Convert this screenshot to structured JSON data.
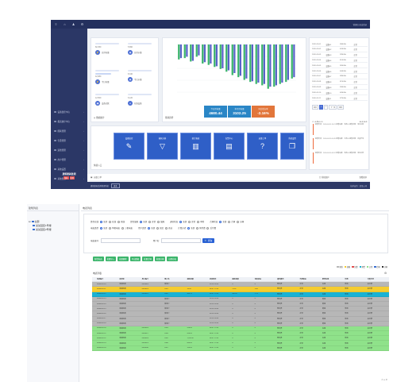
{
  "top": {
    "icons": [
      "menu-icon",
      "home-icon",
      "user-icon",
      "gear-icon"
    ],
    "header_right": "管理员  退出登录",
    "sidebar": {
      "items": [
        {
          "label": "设备监控中心",
          "icon": "monitor-icon"
        },
        {
          "label": "报表统计中心",
          "icon": "chart-icon"
        },
        {
          "label": "能耗管理",
          "icon": "bolt-icon"
        },
        {
          "label": "告警管理",
          "icon": "bell-icon"
        },
        {
          "label": "运维管理",
          "icon": "wrench-icon"
        },
        {
          "label": "用户管理",
          "icon": "user-icon"
        },
        {
          "label": "系统设置",
          "icon": "gear-icon"
        },
        {
          "label": "系统管理",
          "icon": "cog-icon"
        }
      ],
      "logo_line1": "建筑能耗监测",
      "logo_tags": [
        "能耗",
        "监测"
      ]
    },
    "stats": {
      "items": [
        {
          "value": "82,450",
          "label": "总用电量"
        },
        {
          "value": "5,890",
          "label": "总用水量"
        },
        {
          "value": "42,980",
          "label": "今日电量"
        },
        {
          "value": "8,340",
          "label": "今日水量"
        },
        {
          "value": "12,500",
          "label": "设备总数"
        },
        {
          "value": "6,120",
          "label": "在线设备"
        }
      ],
      "title": "数据统计"
    },
    "chart": {
      "title": "能耗趋势",
      "kpis": [
        {
          "title": "今日用电量",
          "value": "4680.44"
        },
        {
          "title": "本月用电量",
          "value": "3102.25"
        },
        {
          "title": "同比增长率",
          "value": "-2.16%"
        }
      ]
    },
    "table": {
      "rows": [
        [
          "2020-03-01",
          "设备01",
          "380kWh",
          "正常"
        ],
        [
          "2020-03-02",
          "设备02",
          "420kWh",
          "正常"
        ],
        [
          "2020-03-03",
          "设备03",
          "395kWh",
          "正常"
        ],
        [
          "2020-03-04",
          "设备04",
          "410kWh",
          "正常"
        ],
        [
          "2020-03-05",
          "设备05",
          "365kWh",
          "正常"
        ],
        [
          "2020-03-06",
          "设备06",
          "400kWh",
          "正常"
        ],
        [
          "2020-03-07",
          "设备07",
          "385kWh",
          "正常"
        ],
        [
          "2020-03-08",
          "设备08",
          "415kWh",
          "正常"
        ],
        [
          "2020-03-09",
          "设备09",
          "390kWh",
          "正常"
        ],
        [
          "2020-03-10",
          "设备10",
          "405kWh",
          "正常"
        ],
        [
          "2020-03-11",
          "设备11",
          "375kWh",
          "正常"
        ]
      ],
      "buttons": [
        "首页",
        "1",
        "2",
        "下一页",
        "尾页"
      ]
    },
    "alerts": {
      "title": "告警信息",
      "more": "查看更多",
      "items": [
        "报警时间：2020-03-20 10:21  报警设备：电表01  报警内容：电流过载",
        "报警时间：2020-03-20 09:45  报警设备：水表03  报警内容：流量异常",
        "报警时间：2020-03-20 08:12  报警设备：电表05  报警内容：电压过低"
      ]
    },
    "quick": {
      "title": "快捷入口",
      "items": [
        {
          "label": "设备监控",
          "icon": "edit-icon"
        },
        {
          "label": "能耗分析",
          "icon": "filter-icon"
        },
        {
          "label": "统计报表",
          "icon": "bar-chart-icon"
        },
        {
          "label": "告警中心",
          "icon": "document-icon"
        },
        {
          "label": "运维工单",
          "icon": "help-icon"
        },
        {
          "label": "系统设置",
          "icon": "copy-icon"
        }
      ]
    },
    "foot": "运维工单",
    "foot2": "系统维护",
    "foot2_more": "查看更多",
    "status": "建筑能耗监测管理系统",
    "status_btn": "更多",
    "status_right": "技术支持：某某公司"
  },
  "bottom": {
    "tree": {
      "title": "建筑列表",
      "nodes": [
        "全部",
        "某某园区1号楼",
        "某某园区2号楼"
      ]
    },
    "title": "电表列表",
    "filters": {
      "row1": [
        {
          "label": "是否在线",
          "options": [
            "全部",
            "在线",
            "离线"
          ]
        },
        {
          "label": "是否故障",
          "options": [
            "全部",
            "正常",
            "故障"
          ]
        },
        {
          "label": "通讯状态",
          "options": [
            "全部",
            "正常",
            "中断"
          ]
        },
        {
          "label": "合闸状态",
          "options": [
            "全部",
            "合闸",
            "分闸"
          ]
        }
      ],
      "row2": [
        {
          "label": "电表类型",
          "options": [
            "全部",
            "单相电表",
            "三相电表"
          ]
        },
        {
          "label": "用户类型",
          "options": [
            "全部",
            "居民",
            "商业"
          ]
        },
        {
          "label": "计费方式",
          "options": [
            "全部",
            "预付费",
            "后付费"
          ]
        }
      ],
      "code_label": "电表编号:",
      "name_label": "用户名:",
      "query": "查询"
    },
    "actions": [
      "新增电表",
      "批量导入",
      "批量删除",
      "导出数据",
      "批量合闸",
      "批量分闸",
      "远程抄表"
    ],
    "legend": [
      {
        "label": "离线",
        "color": "#b7b7b7"
      },
      {
        "label": "故障",
        "color": "#f5cc2f"
      },
      {
        "label": "欠费",
        "color": "#e24d4d"
      },
      {
        "label": "预警",
        "color": "#19b2d4"
      },
      {
        "label": "正常",
        "color": "#8fe28a"
      },
      {
        "label": "合闸",
        "color": "#3a6fd0"
      },
      {
        "label": "分闸",
        "color": "#333333"
      }
    ],
    "grid_title": "电表列表",
    "columns": [
      "电表编号",
      "表类型",
      "用户编号",
      "用户名",
      "剩余余额",
      "抄表时间",
      "剩余金额",
      "电表状态",
      "通讯模式",
      "合闸状态",
      "是否在线",
      "合闸",
      "计费方式"
    ],
    "rows": [
      {
        "c": "gray",
        "v": [
          "0000032210",
          "单相电表",
          "0000003",
          "某用户",
          "",
          "05-18 15:00",
          "0",
          "0",
          "预付费",
          "正常",
          "在线",
          "合闸",
          "后付费"
        ]
      },
      {
        "c": "yellow",
        "v": [
          "0000032211",
          "单相电表",
          "0000024",
          "2001",
          "39.85",
          "06-07 17:00",
          "13.82",
          "3.86",
          "预付费",
          "正常",
          "在线",
          "合闸",
          "后付费"
        ]
      },
      {
        "c": "cyan",
        "v": [
          "0000032212",
          "单相电表",
          "0000025",
          "2002",
          "400.11",
          "06-07 17:00",
          "400.05",
          "2.74",
          "预付费",
          "正常",
          "在线",
          "合闸",
          "后付费"
        ]
      },
      {
        "c": "gray",
        "v": [
          "0000032213",
          "单相电表",
          "",
          "某用户",
          "",
          "05-18 15:00",
          "0",
          "0",
          "预付费",
          "正常",
          "离线",
          "合闸",
          "后付费"
        ]
      },
      {
        "c": "gray",
        "v": [
          "0000032214",
          "单相电表",
          "",
          "某用户",
          "",
          "05-18 15:00",
          "0",
          "0",
          "预付费",
          "正常",
          "离线",
          "合闸",
          "后付费"
        ]
      },
      {
        "c": "gray",
        "v": [
          "0000032215",
          "单相电表",
          "",
          "某用户",
          "",
          "05-18 15:00",
          "0",
          "0",
          "预付费",
          "正常",
          "离线",
          "合闸",
          "后付费"
        ]
      },
      {
        "c": "gray",
        "v": [
          "0000032216",
          "单相电表",
          "",
          "某用户",
          "",
          "05-18 15:00",
          "0",
          "0",
          "预付费",
          "正常",
          "离线",
          "合闸",
          "后付费"
        ]
      },
      {
        "c": "gray",
        "v": [
          "0000032217",
          "单相电表",
          "",
          "某用户",
          "",
          "05-18 15:00",
          "0",
          "0",
          "预付费",
          "正常",
          "离线",
          "合闸",
          "后付费"
        ]
      },
      {
        "c": "gray",
        "v": [
          "0000032218",
          "单相电表",
          "",
          "某用户",
          "",
          "05-18 15:00",
          "0",
          "0",
          "预付费",
          "正常",
          "离线",
          "合闸",
          "后付费"
        ]
      },
      {
        "c": "green",
        "v": [
          "0000032220",
          "单相电表",
          "0000026",
          "2003",
          "418.00",
          "06-07 17:00",
          "0",
          "0",
          "预付费",
          "正常",
          "在线",
          "合闸",
          "后付费"
        ]
      },
      {
        "c": "green",
        "v": [
          "0000032221",
          "单相电表",
          "0000027",
          "2004",
          "856.00",
          "06-07 17:00",
          "0",
          "0",
          "预付费",
          "正常",
          "在线",
          "合闸",
          "后付费"
        ]
      },
      {
        "c": "green",
        "v": [
          "0000032222",
          "单相电表",
          "0000028",
          "2005",
          "1,200.00",
          "06-07 17:00",
          "0",
          "0",
          "预付费",
          "正常",
          "在线",
          "合闸",
          "后付费"
        ]
      },
      {
        "c": "green",
        "v": [
          "0000032223",
          "单相电表",
          "0000029",
          "2006",
          "600.00",
          "06-07 17:00",
          "0",
          "0",
          "预付费",
          "正常",
          "在线",
          "合闸",
          "后付费"
        ]
      },
      {
        "c": "green",
        "v": [
          "0000032224",
          "单相电表",
          "0000030",
          "2007",
          "320.00",
          "06-07 17:00",
          "0",
          "0",
          "预付费",
          "正常",
          "在线",
          "合闸",
          "后付费"
        ]
      }
    ],
    "pager": "共 14 条"
  },
  "chart_data": {
    "type": "bar",
    "categories": [
      "1",
      "2",
      "3",
      "4",
      "5",
      "6",
      "7",
      "8",
      "9",
      "10",
      "11",
      "12",
      "13",
      "14",
      "15",
      "16",
      "17",
      "18",
      "19",
      "20"
    ],
    "series": [
      {
        "name": "",
        "color": "#3bb56b",
        "values": [
          -22,
          -20,
          -25,
          -18,
          -28,
          -30,
          -33,
          -36,
          -40,
          -45,
          -48,
          -52,
          -55,
          -58,
          -60,
          -65,
          -62,
          -58,
          -55,
          -50
        ]
      },
      {
        "name": "",
        "color": "#5863c8",
        "values": [
          -20,
          -18,
          -24,
          -16,
          -26,
          -28,
          -32,
          -35,
          -38,
          -42,
          -46,
          -50,
          -54,
          -56,
          -58,
          -62,
          -60,
          -56,
          -52,
          -48
        ]
      }
    ],
    "ylim": [
      -70,
      0
    ]
  }
}
